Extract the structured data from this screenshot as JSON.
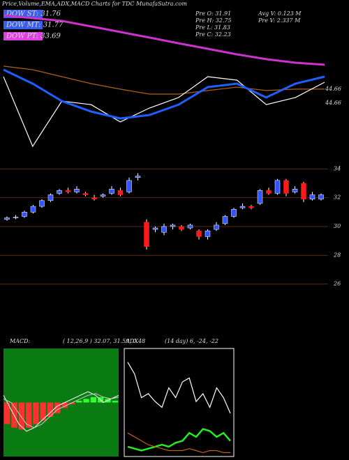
{
  "chart_data": [
    {
      "type": "line",
      "title": "Price,Volume,EMA,ADX,MACD Charts for TDC MunafaSutra.com",
      "legend": [
        {
          "label": "DOW ST: 31.76",
          "color": "#3b5ee8"
        },
        {
          "label": "DOW MT: 31.77",
          "color": "#3b5ee8"
        },
        {
          "label": "DOW PT: 33.69",
          "color": "#e040e0"
        }
      ],
      "annotations": [
        "Pre  O: 31.91",
        "Avg  V: 0.123  M",
        "Pre  H: 32.75",
        "Pre  V: 2.337  M",
        "Pre  L: 31.83",
        "Pre  C: 32.23",
        "44.66",
        "44.66"
      ],
      "ylim": [
        36,
        50
      ],
      "series": [
        {
          "color": "#cc33cc",
          "values": [
            49.22,
            48.96,
            48.7,
            48.18,
            47.66,
            47.14,
            46.61,
            46.09,
            45.57,
            45.12,
            44.79,
            44.6
          ]
        },
        {
          "color": "#b0601a",
          "values": [
            44.47,
            44.14,
            43.49,
            42.84,
            42.32,
            41.86,
            41.86,
            42.19,
            42.51,
            42.19,
            42.32,
            42.32
          ]
        },
        {
          "color": "#ffffff",
          "values": [
            43.49,
            36.98,
            41.21,
            40.88,
            39.26,
            40.56,
            41.54,
            43.49,
            43.16,
            40.88,
            41.54,
            42.97
          ]
        },
        {
          "color": "#1f5fff",
          "values": [
            44.14,
            42.84,
            41.21,
            40.23,
            39.58,
            39.91,
            40.88,
            42.51,
            42.84,
            41.54,
            42.84,
            43.49
          ]
        }
      ]
    },
    {
      "type": "candlestick",
      "ylim": [
        25.5,
        34.5
      ],
      "yticks": [
        26,
        28,
        30,
        32,
        34
      ],
      "grid": true,
      "up_color": "#3355ff",
      "down_color": "#ff1a1a",
      "open": [
        30.5,
        30.6,
        30.7,
        31.0,
        31.4,
        31.8,
        32.3,
        32.5,
        32.4,
        32.3,
        32.0,
        32.1,
        32.3,
        32.5,
        32.4,
        33.4,
        30.3,
        29.8,
        29.6,
        30.0,
        30.0,
        29.9,
        29.7,
        29.3,
        29.8,
        30.2,
        30.7,
        31.3,
        31.4,
        31.6,
        32.5,
        32.3,
        33.2,
        32.4,
        33.0,
        31.9,
        31.9
      ],
      "high": [
        30.7,
        30.8,
        31.1,
        31.5,
        31.9,
        32.3,
        32.6,
        32.7,
        32.8,
        32.4,
        32.2,
        32.3,
        32.8,
        32.7,
        33.4,
        33.7,
        30.5,
        30.0,
        30.2,
        30.2,
        30.1,
        30.2,
        29.8,
        29.8,
        30.3,
        30.8,
        31.3,
        31.6,
        31.5,
        32.6,
        32.7,
        33.3,
        33.3,
        32.8,
        33.1,
        32.4,
        32.3
      ],
      "low": [
        30.4,
        30.5,
        30.6,
        30.9,
        31.3,
        31.7,
        32.2,
        32.3,
        32.3,
        32.1,
        31.8,
        32.0,
        32.2,
        32.1,
        32.3,
        33.2,
        28.4,
        29.6,
        29.4,
        29.8,
        29.7,
        29.8,
        29.1,
        29.1,
        29.7,
        30.1,
        30.6,
        31.2,
        31.2,
        31.5,
        32.2,
        32.2,
        32.1,
        32.3,
        31.7,
        31.8,
        31.8
      ],
      "close": [
        30.6,
        30.65,
        31.0,
        31.4,
        31.8,
        32.2,
        32.5,
        32.4,
        32.6,
        32.2,
        31.9,
        32.2,
        32.6,
        32.2,
        33.2,
        33.5,
        28.6,
        29.9,
        30.0,
        30.1,
        29.8,
        30.1,
        29.3,
        29.7,
        30.1,
        30.7,
        31.2,
        31.4,
        31.3,
        32.5,
        32.3,
        33.2,
        32.3,
        32.6,
        31.9,
        32.2,
        32.2
      ]
    },
    {
      "type": "macd",
      "label": "MACD:",
      "params": "( 12,26,9 ) 32.07, 31.59, 0.48",
      "background": "#0a7a12",
      "ylim": [
        -1.5,
        1.5
      ],
      "histogram": [
        -0.6,
        -0.7,
        -0.75,
        -0.7,
        -0.6,
        -0.5,
        -0.4,
        -0.3,
        -0.15,
        -0.05,
        0.05,
        0.1,
        0.15,
        0.15,
        0.1,
        0.05
      ],
      "series": [
        {
          "color": "#ffffff",
          "values": [
            0.2,
            -0.2,
            -0.6,
            -0.8,
            -0.7,
            -0.5,
            -0.3,
            -0.1,
            0.0,
            0.1,
            0.2,
            0.3,
            0.2,
            0.0,
            0.1,
            0.2
          ]
        },
        {
          "color": "#cccccc",
          "values": [
            0.1,
            0.0,
            -0.3,
            -0.6,
            -0.7,
            -0.6,
            -0.4,
            -0.2,
            -0.1,
            0.0,
            0.1,
            0.2,
            0.25,
            0.15,
            0.1,
            0.15
          ]
        }
      ]
    },
    {
      "type": "adx",
      "label": "ADX",
      "params": "(14 day) 6, -24, -22",
      "ylim": [
        0,
        55
      ],
      "series": [
        {
          "color": "#ffffff",
          "values": [
            48,
            42,
            30,
            32,
            28,
            25,
            35,
            30,
            38,
            40,
            28,
            32,
            25,
            35,
            30,
            22
          ]
        },
        {
          "color": "#22ee22",
          "values": [
            5,
            4,
            3,
            4,
            5,
            6,
            5,
            7,
            8,
            12,
            10,
            14,
            13,
            10,
            12,
            8
          ]
        },
        {
          "color": "#c0601a",
          "values": [
            12,
            10,
            8,
            6,
            5,
            4,
            3,
            3,
            3,
            4,
            3,
            2,
            3,
            3,
            2,
            2
          ]
        }
      ]
    }
  ]
}
